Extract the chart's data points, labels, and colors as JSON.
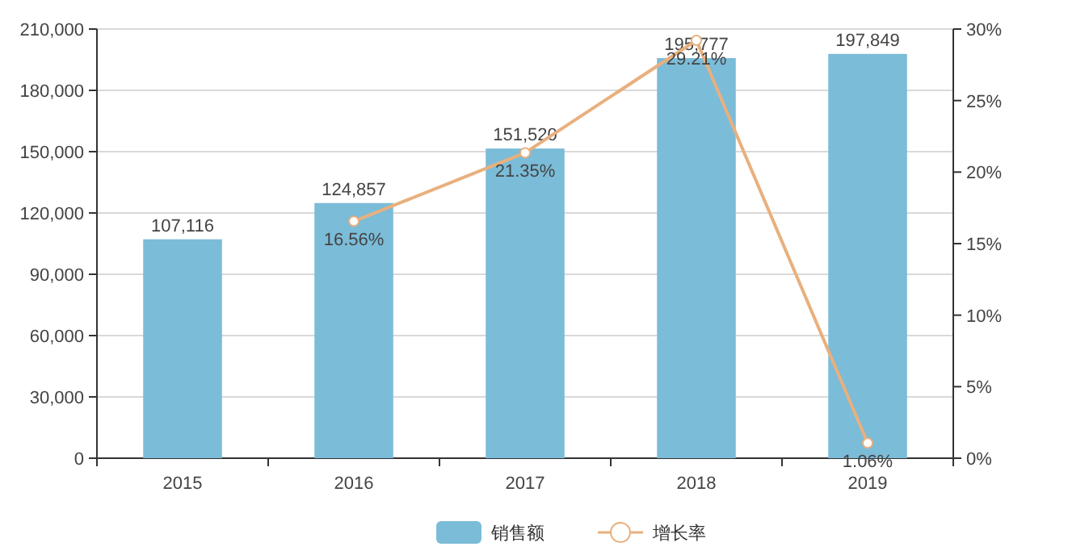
{
  "chart_data": {
    "type": "bar",
    "categories": [
      "2015",
      "2016",
      "2017",
      "2018",
      "2019"
    ],
    "series": [
      {
        "name": "销售额",
        "color": "#7bbcd8",
        "values": [
          107116,
          124857,
          151520,
          195777,
          197849
        ],
        "value_labels": [
          "107,116",
          "124,857",
          "151,520",
          "195,777",
          "197,849"
        ]
      },
      {
        "name": "增长率",
        "type": "line",
        "axis": "y2",
        "color": "#e8b07e",
        "values": [
          null,
          16.56,
          21.35,
          29.21,
          1.06
        ],
        "value_labels": [
          null,
          "16.56%",
          "21.35%",
          "29.21%",
          "1.06%"
        ]
      }
    ],
    "ylim": [
      0,
      210000
    ],
    "yticks": [
      0,
      {
        "value": 30000,
        "label": "30,000"
      },
      {
        "value": 60000,
        "label": "60,000"
      },
      {
        "value": 90000,
        "label": "90,000"
      },
      {
        "value": 120000,
        "label": "120,000"
      },
      {
        "value": 150000,
        "label": "150,000"
      },
      {
        "value": 180000,
        "label": "180,000"
      },
      {
        "value": 210000,
        "label": "210,000"
      }
    ],
    "y2lim": [
      0,
      30
    ],
    "y2ticks": [
      {
        "value": 0,
        "label": "0%"
      },
      {
        "value": 5,
        "label": "5%"
      },
      {
        "value": 10,
        "label": "10%"
      },
      {
        "value": 15,
        "label": "15%"
      },
      {
        "value": 20,
        "label": "20%"
      },
      {
        "value": 25,
        "label": "25%"
      },
      {
        "value": 30,
        "label": "30%"
      }
    ],
    "grid": "y",
    "legend": "bottom",
    "marker": "circle"
  }
}
